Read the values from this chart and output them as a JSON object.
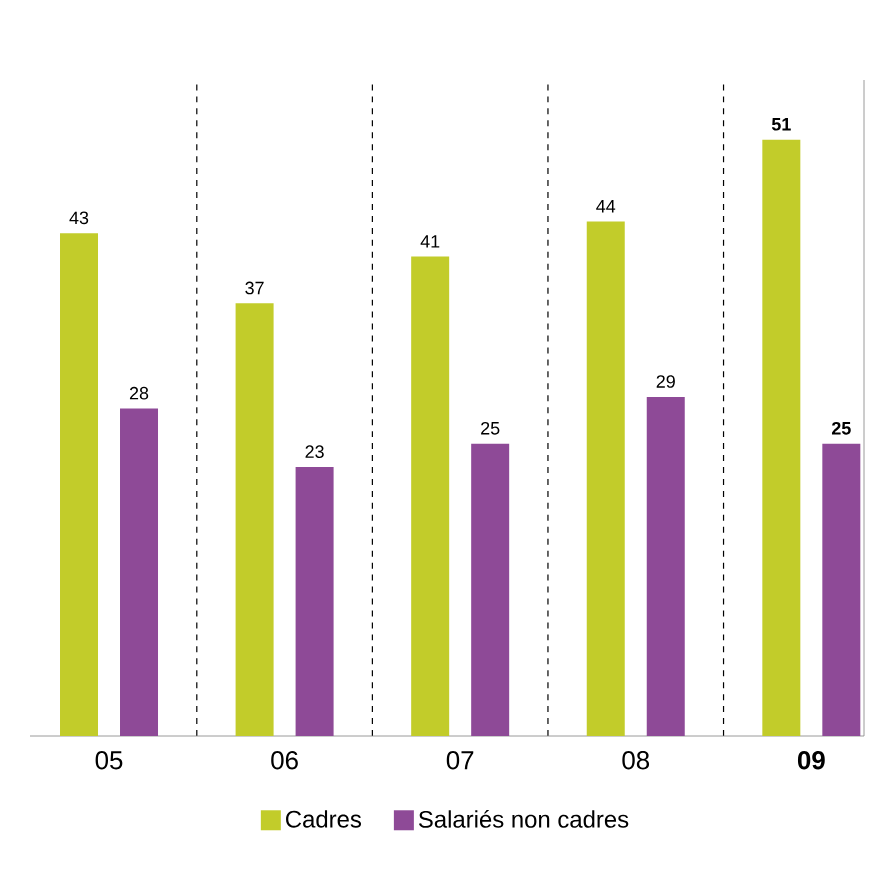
{
  "chart_data": {
    "type": "bar",
    "categories": [
      "05",
      "06",
      "07",
      "08",
      "09"
    ],
    "series": [
      {
        "name": "Cadres",
        "color": "#c2cc2a",
        "values": [
          43,
          37,
          41,
          44,
          51
        ]
      },
      {
        "name": "Salariés non cadres",
        "color": "#8e4a97",
        "values": [
          28,
          23,
          25,
          29,
          25
        ]
      }
    ],
    "data_labels": true,
    "grid": "x",
    "legend": "bottom"
  }
}
